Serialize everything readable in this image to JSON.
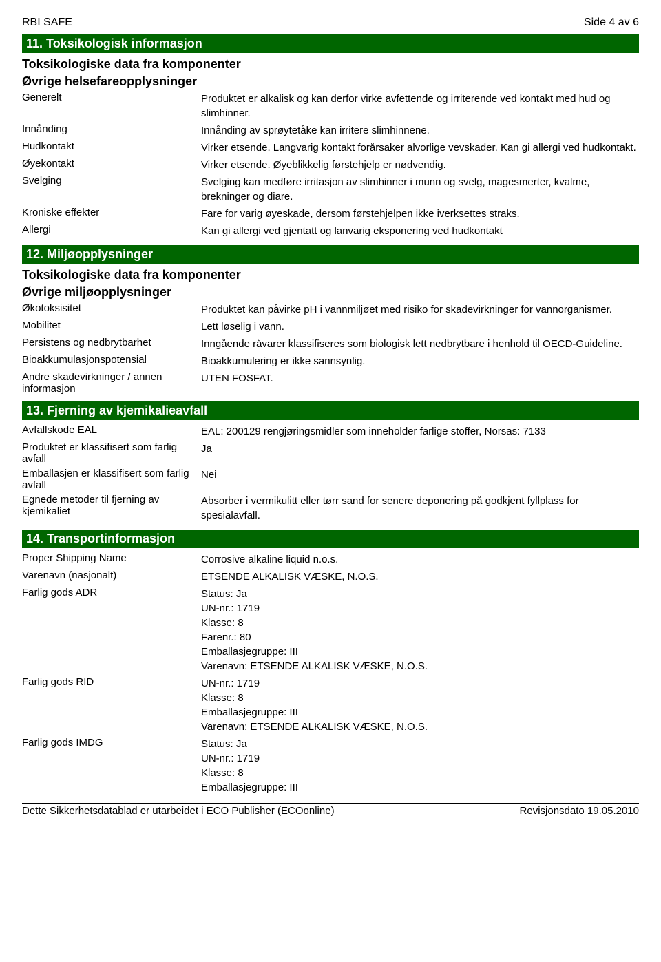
{
  "header": {
    "title": "RBI SAFE",
    "page": "Side 4 av 6"
  },
  "section11": {
    "title": "11. Toksikologisk informasjon",
    "sub1": "Toksikologiske data fra komponenter",
    "sub2": "Øvrige helsefareopplysninger",
    "rows": [
      {
        "label": "Generelt",
        "value": "Produktet er alkalisk og kan derfor virke avfettende og irriterende ved kontakt med hud og slimhinner."
      },
      {
        "label": "Innånding",
        "value": "Innånding av sprøytetåke kan irritere slimhinnene."
      },
      {
        "label": "Hudkontakt",
        "value": "Virker etsende. Langvarig kontakt forårsaker alvorlige vevskader. Kan gi allergi ved hudkontakt."
      },
      {
        "label": "Øyekontakt",
        "value": "Virker etsende. Øyeblikkelig førstehjelp er nødvendig."
      },
      {
        "label": "Svelging",
        "value": "Svelging kan medføre irritasjon av slimhinner i munn og svelg, magesmerter, kvalme, brekninger og diare."
      },
      {
        "label": "Kroniske effekter",
        "value": "Fare for varig øyeskade, dersom førstehjelpen ikke iverksettes straks."
      },
      {
        "label": "Allergi",
        "value": "Kan gi allergi ved gjentatt og lanvarig eksponering ved hudkontakt"
      }
    ]
  },
  "section12": {
    "title": "12. Miljøopplysninger",
    "sub1": "Toksikologiske data fra komponenter",
    "sub2": "Øvrige miljøopplysninger",
    "rows": [
      {
        "label": "Økotoksisitet",
        "value": "Produktet kan påvirke pH i vannmiljøet med risiko for skadevirkninger for vannorganismer."
      },
      {
        "label": "Mobilitet",
        "value": "Lett løselig i vann."
      },
      {
        "label": "Persistens og nedbrytbarhet",
        "value": "Inngående råvarer klassifiseres som biologisk lett nedbrytbare i henhold til OECD-Guideline."
      },
      {
        "label": "Bioakkumulasjonspotensial",
        "value": "Bioakkumulering er ikke sannsynlig."
      },
      {
        "label": "Andre skadevirkninger / annen informasjon",
        "value": "UTEN FOSFAT."
      }
    ]
  },
  "section13": {
    "title": "13. Fjerning av kjemikalieavfall",
    "rows": [
      {
        "label": "Avfallskode EAL",
        "value": "EAL: 200129 rengjøringsmidler som inneholder farlige stoffer,    Norsas: 7133"
      },
      {
        "label": "Produktet er klassifisert som farlig avfall",
        "value": "Ja"
      },
      {
        "label": "Emballasjen er klassifisert som farlig avfall",
        "value": "Nei"
      },
      {
        "label": "Egnede metoder til fjerning av kjemikaliet",
        "value": "Absorber i vermikulitt eller tørr sand for senere deponering på godkjent fyllplass for spesialavfall."
      }
    ]
  },
  "section14": {
    "title": "14. Transportinformasjon",
    "rows": [
      {
        "label": "Proper Shipping Name",
        "value": "Corrosive alkaline liquid n.o.s."
      },
      {
        "label": "Varenavn (nasjonalt)",
        "value": "ETSENDE ALKALISK VÆSKE, N.O.S."
      },
      {
        "label": "Farlig gods ADR",
        "value": "Status: Ja\nUN-nr.: 1719\nKlasse: 8\nFarenr.: 80\nEmballasjegruppe: III\nVarenavn: ETSENDE ALKALISK VÆSKE, N.O.S."
      },
      {
        "label": "Farlig gods RID",
        "value": "UN-nr.: 1719\nKlasse: 8\nEmballasjegruppe: III\nVarenavn: ETSENDE ALKALISK VÆSKE, N.O.S."
      },
      {
        "label": "Farlig gods IMDG",
        "value": "Status: Ja\nUN-nr.: 1719\nKlasse: 8\nEmballasjegruppe: III"
      }
    ]
  },
  "footer": {
    "left": "Dette Sikkerhetsdatablad er utarbeidet i ECO Publisher (ECOonline)",
    "right": "Revisjonsdato 19.05.2010"
  },
  "colors": {
    "section_bg": "#006600",
    "section_fg": "#ffffff",
    "text": "#000000",
    "bg": "#ffffff"
  }
}
